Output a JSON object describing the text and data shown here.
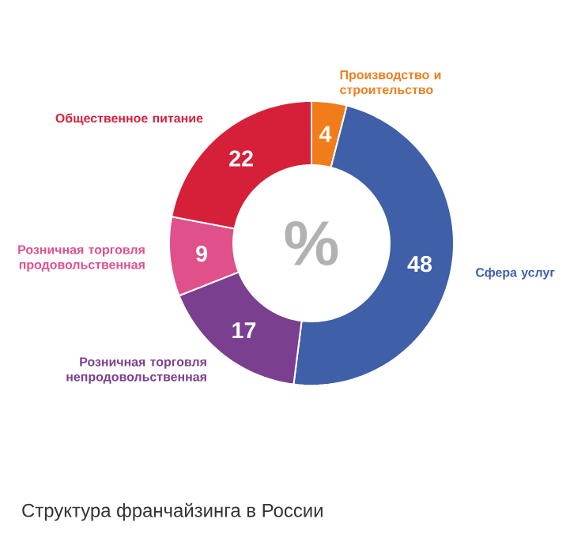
{
  "chart_data": {
    "type": "donut",
    "title": "Структура франчайзинга в России",
    "categories": [
      "Производство и строительство",
      "Сфера услуг",
      "Розничная торговля непродовольственная",
      "Розничная торговля продовольственная",
      "Общественное питание"
    ],
    "values": [
      4,
      48,
      17,
      9,
      22
    ],
    "colors": [
      "#f07d1a",
      "#3f5fa8",
      "#7b3f8f",
      "#e0508a",
      "#d6203a"
    ],
    "data_labels": true,
    "annotations": [
      "%"
    ]
  }
}
